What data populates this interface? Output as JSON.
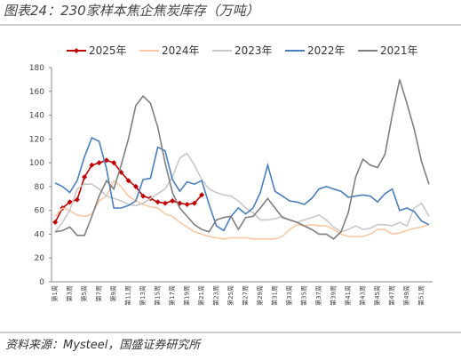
{
  "chart_data": {
    "type": "line",
    "title": "图表24：230家样本焦企焦炭库存（万吨）",
    "source": "资料来源：Mysteel，国盛证券研究所",
    "categories": [
      "第1周",
      null,
      "第3周",
      null,
      "第5周",
      null,
      "第7周",
      null,
      "第9周",
      null,
      "第11周",
      null,
      "第13周",
      null,
      "第15周",
      null,
      "第17周",
      null,
      "第19周",
      null,
      "第21周",
      null,
      "第23周",
      null,
      "第25周",
      null,
      "第27周",
      null,
      "第29周",
      null,
      "第31周",
      null,
      "第33周",
      null,
      "第35周",
      null,
      "第37周",
      null,
      "第39周",
      null,
      "第41周",
      null,
      "第43周",
      null,
      "第45周",
      null,
      "第47周",
      null,
      "第49周",
      null,
      "第51周",
      null
    ],
    "ylim": [
      0,
      180
    ],
    "yticks": [
      0,
      20,
      40,
      60,
      80,
      100,
      120,
      140,
      160,
      180
    ],
    "legend": "top",
    "series": [
      {
        "name": "2025年",
        "color": "#c00000",
        "marker": "diamond",
        "values": [
          50,
          62,
          67,
          69,
          88,
          98,
          100,
          102,
          100,
          92,
          85,
          80,
          72,
          70,
          67,
          66,
          68,
          66,
          65,
          66,
          73,
          null,
          null,
          null,
          null,
          null,
          null,
          null,
          null,
          null,
          null,
          null,
          null,
          null,
          null,
          null,
          null,
          null,
          null,
          null,
          null,
          null,
          null,
          null,
          null,
          null,
          null,
          null,
          null,
          null,
          null,
          null
        ]
      },
      {
        "name": "2024年",
        "color": "#f7c9a4",
        "values": [
          55,
          62,
          60,
          56,
          55,
          57,
          68,
          72,
          85,
          80,
          72,
          68,
          65,
          63,
          62,
          57,
          55,
          50,
          46,
          42,
          40,
          38,
          37,
          36,
          37,
          37,
          37,
          36,
          36,
          36,
          36,
          38,
          44,
          48,
          47,
          48,
          47,
          47,
          44,
          40,
          38,
          38,
          38,
          40,
          44,
          44,
          40,
          41,
          43,
          45,
          46,
          48
        ]
      },
      {
        "name": "2023年",
        "color": "#c8c8c8",
        "values": [
          42,
          50,
          60,
          78,
          82,
          82,
          78,
          72,
          70,
          68,
          65,
          64,
          66,
          70,
          74,
          78,
          88,
          104,
          108,
          98,
          86,
          78,
          75,
          73,
          72,
          68,
          62,
          58,
          52,
          52,
          53,
          55,
          52,
          50,
          52,
          54,
          56,
          52,
          46,
          42,
          44,
          47,
          44,
          45,
          48,
          48,
          47,
          50,
          47,
          62,
          66,
          55
        ]
      },
      {
        "name": "2022年",
        "color": "#4a7ebb",
        "values": [
          83,
          80,
          75,
          85,
          105,
          121,
          118,
          95,
          62,
          62,
          64,
          68,
          86,
          87,
          113,
          110,
          86,
          76,
          84,
          82,
          85,
          65,
          47,
          43,
          55,
          62,
          57,
          62,
          75,
          98,
          76,
          72,
          68,
          67,
          65,
          70,
          78,
          80,
          78,
          76,
          71,
          72,
          73,
          72,
          67,
          74,
          78,
          60,
          62,
          59,
          51,
          48
        ]
      },
      {
        "name": "2021年",
        "color": "#7f7f7f",
        "values": [
          42,
          43,
          46,
          39,
          39,
          55,
          72,
          85,
          78,
          98,
          120,
          148,
          156,
          150,
          130,
          100,
          75,
          62,
          55,
          48,
          44,
          42,
          52,
          54,
          55,
          44,
          54,
          55,
          62,
          70,
          62,
          54,
          52,
          50,
          47,
          44,
          40,
          40,
          36,
          42,
          58,
          88,
          103,
          98,
          96,
          107,
          140,
          170,
          150,
          128,
          101,
          82
        ]
      }
    ]
  }
}
